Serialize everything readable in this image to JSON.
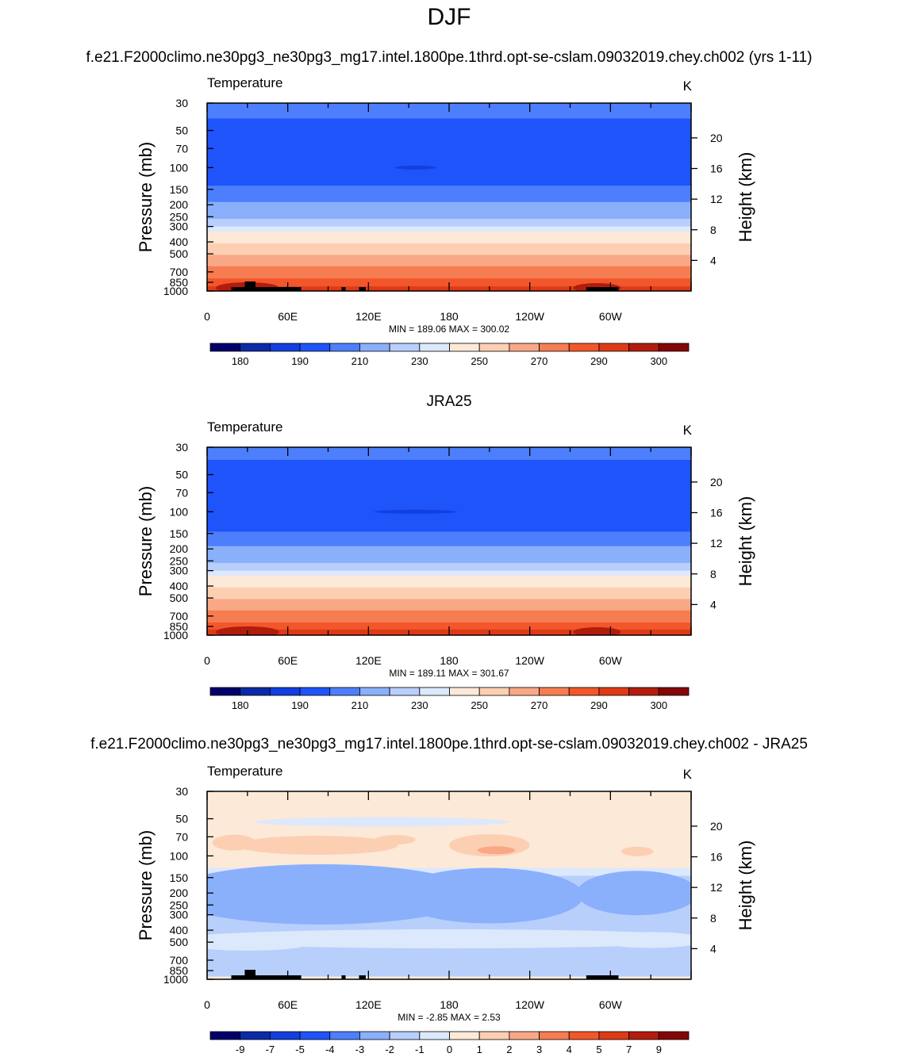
{
  "title": "DJF",
  "case_name": "f.e21.F2000climo.ne30pg3_ne30pg3_mg17.intel.1800pe.1thrd.opt-se-cslam.09032019.chey.ch002 (yrs 1-11)",
  "panel2_title": "JRA25",
  "diff_title": "f.e21.F2000climo.ne30pg3_ne30pg3_mg17.intel.1800pe.1thrd.opt-se-cslam.09032019.chey.ch002 - JRA25",
  "chart_data": [
    {
      "type": "heatmap",
      "left_label": "Temperature",
      "right_label": "K",
      "ylabel": "Pressure (mb)",
      "ylabel_right": "Height (km)",
      "x_ticks": [
        "0",
        "60E",
        "120E",
        "180",
        "120W",
        "60W"
      ],
      "pressure_ticks": [
        "30",
        "50",
        "70",
        "100",
        "150",
        "200",
        "250",
        "300",
        "400",
        "500",
        "700",
        "850",
        "1000"
      ],
      "height_ticks": [
        "20",
        "16",
        "12",
        "8",
        "4"
      ],
      "stats": "MIN = 189.06  MAX = 300.02",
      "colorbar_labels": [
        "180",
        "190",
        "210",
        "230",
        "250",
        "270",
        "290",
        "300"
      ],
      "colorbar_colors": [
        "#02006b",
        "#0a2aa8",
        "#123fe0",
        "#1e54fa",
        "#4d7ffc",
        "#8ab0fc",
        "#b8cffc",
        "#dce8fc",
        "#fde9d8",
        "#fccfb3",
        "#f9a886",
        "#f67d52",
        "#f2572b",
        "#df3a17",
        "#b31c0c",
        "#840707"
      ],
      "bands": [
        {
          "p": 30,
          "color": "#4d7ffc"
        },
        {
          "p": 40,
          "color": "#1e54fa"
        },
        {
          "p": 140,
          "color": "#4d7ffc"
        },
        {
          "p": 190,
          "color": "#8ab0fc"
        },
        {
          "p": 260,
          "color": "#b8cffc"
        },
        {
          "p": 300,
          "color": "#dce8fc"
        },
        {
          "p": 330,
          "color": "#fde9d8"
        },
        {
          "p": 410,
          "color": "#fccfb3"
        },
        {
          "p": 510,
          "color": "#f9a886"
        },
        {
          "p": 630,
          "color": "#f67d52"
        },
        {
          "p": 790,
          "color": "#f2572b"
        },
        {
          "p": 920,
          "color": "#df3a17"
        }
      ]
    },
    {
      "type": "heatmap",
      "left_label": "Temperature",
      "right_label": "K",
      "ylabel": "Pressure (mb)",
      "ylabel_right": "Height (km)",
      "x_ticks": [
        "0",
        "60E",
        "120E",
        "180",
        "120W",
        "60W"
      ],
      "pressure_ticks": [
        "30",
        "50",
        "70",
        "100",
        "150",
        "200",
        "250",
        "300",
        "400",
        "500",
        "700",
        "850",
        "1000"
      ],
      "height_ticks": [
        "20",
        "16",
        "12",
        "8",
        "4"
      ],
      "stats": "MIN = 189.11  MAX = 301.67",
      "colorbar_labels": [
        "180",
        "190",
        "210",
        "230",
        "250",
        "270",
        "290",
        "300"
      ],
      "colorbar_colors": [
        "#02006b",
        "#0a2aa8",
        "#123fe0",
        "#1e54fa",
        "#4d7ffc",
        "#8ab0fc",
        "#b8cffc",
        "#dce8fc",
        "#fde9d8",
        "#fccfb3",
        "#f9a886",
        "#f67d52",
        "#f2572b",
        "#df3a17",
        "#b31c0c",
        "#840707"
      ],
      "bands": [
        {
          "p": 30,
          "color": "#4d7ffc"
        },
        {
          "p": 38,
          "color": "#1e54fa"
        },
        {
          "p": 145,
          "color": "#4d7ffc"
        },
        {
          "p": 190,
          "color": "#8ab0fc"
        },
        {
          "p": 260,
          "color": "#b8cffc"
        },
        {
          "p": 300,
          "color": "#dce8fc"
        },
        {
          "p": 330,
          "color": "#fde9d8"
        },
        {
          "p": 410,
          "color": "#fccfb3"
        },
        {
          "p": 510,
          "color": "#f9a886"
        },
        {
          "p": 630,
          "color": "#f67d52"
        },
        {
          "p": 790,
          "color": "#f2572b"
        },
        {
          "p": 900,
          "color": "#df3a17"
        }
      ]
    },
    {
      "type": "heatmap",
      "left_label": "Temperature",
      "right_label": "K",
      "ylabel": "Pressure (mb)",
      "ylabel_right": "Height (km)",
      "x_ticks": [
        "0",
        "60E",
        "120E",
        "180",
        "120W",
        "60W"
      ],
      "pressure_ticks": [
        "30",
        "50",
        "70",
        "100",
        "150",
        "200",
        "250",
        "300",
        "400",
        "500",
        "700",
        "850",
        "1000"
      ],
      "height_ticks": [
        "20",
        "16",
        "12",
        "8",
        "4"
      ],
      "stats": "MIN =  -2.85  MAX =   2.53",
      "colorbar_labels": [
        "-9",
        "-7",
        "-5",
        "-4",
        "-3",
        "-2",
        "-1",
        "0",
        "1",
        "2",
        "3",
        "4",
        "5",
        "7",
        "9"
      ],
      "colorbar_colors": [
        "#02006b",
        "#0a2aa8",
        "#123fe0",
        "#1e54fa",
        "#4d7ffc",
        "#8ab0fc",
        "#b8cffc",
        "#dce8fc",
        "#fde9d8",
        "#fccfb3",
        "#f9a886",
        "#f67d52",
        "#f2572b",
        "#df3a17",
        "#b31c0c",
        "#840707"
      ],
      "bands": [
        {
          "p": 30,
          "color": "#fde9d8"
        },
        {
          "p": 125,
          "color": "#dce8fc"
        },
        {
          "p": 145,
          "color": "#b8cffc"
        },
        {
          "p": 850,
          "color": "#b8cffc"
        },
        {
          "p": 950,
          "color": "#fde9d8"
        }
      ]
    }
  ]
}
